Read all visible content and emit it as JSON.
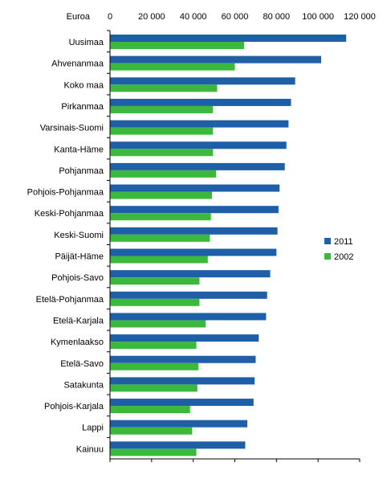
{
  "chart_data": {
    "type": "bar",
    "orientation": "horizontal",
    "unit_label": "Euroa",
    "categories": [
      "Uusimaa",
      "Ahvenanmaa",
      "Koko maa",
      "Pirkanmaa",
      "Varsinais-Suomi",
      "Kanta-Häme",
      "Pohjanmaa",
      "Pohjois-Pohjanmaa",
      "Keski-Pohjanmaa",
      "Keski-Suomi",
      "Päijät-Häme",
      "Pohjois-Savo",
      "Etelä-Pohjanmaa",
      "Etelä-Karjala",
      "Kymenlaakso",
      "Etelä-Savo",
      "Satakunta",
      "Pohjois-Karjala",
      "Lappi",
      "Kainuu"
    ],
    "series": [
      {
        "name": "2011",
        "color": "#1f5fa8",
        "values": [
          113500,
          101500,
          89000,
          87000,
          85800,
          84800,
          84000,
          81500,
          81000,
          80500,
          80000,
          77000,
          75500,
          75000,
          71500,
          70000,
          69500,
          69000,
          66000,
          65000
        ]
      },
      {
        "name": "2002",
        "color": "#3cb83c",
        "values": [
          64500,
          60000,
          51500,
          49500,
          49500,
          49500,
          51000,
          49000,
          48500,
          48000,
          47000,
          43000,
          43000,
          46000,
          41500,
          42500,
          42000,
          38500,
          39500,
          41500
        ]
      }
    ],
    "xlim": [
      0,
      120000
    ],
    "x_ticks": [
      "0",
      "20 000",
      "40 000",
      "60 000",
      "80 000",
      "100 000",
      "120 000"
    ],
    "x_tick_values": [
      0,
      20000,
      40000,
      60000,
      80000,
      100000,
      120000
    ],
    "grid": false,
    "legend": "right"
  }
}
